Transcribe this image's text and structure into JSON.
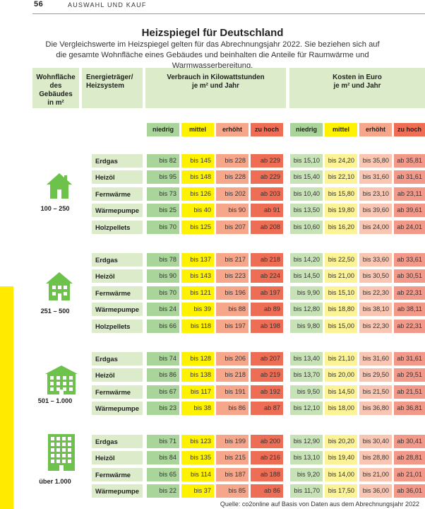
{
  "header": {
    "page_number": "56",
    "section": "AUSWAHL UND KAUF"
  },
  "title": "Heizspiegel für Deutschland",
  "subtitle": "Die Vergleichswerte im Heizspiegel gelten für das Abrechnungsjahr 2022. Sie beziehen sich auf die gesamte Wohnfläche eines Gebäudes und beinhalten die Anteile für Raumwärme und Warmwasserbereitung.",
  "column_headers": {
    "area": "Wohnfläche\ndes Gebäudes\nin m²",
    "energy": "Energieträger/\nHeizsystem",
    "consumption": "Verbrauch in Kilowattstunden\nje m² und Jahr",
    "cost": "Kosten in Euro\nje m² und Jahr"
  },
  "levels": [
    "niedrig",
    "mittel",
    "erhöht",
    "zu hoch"
  ],
  "colors": {
    "niedrig": "#a9d49a",
    "mittel": "#fff200",
    "erhoeht": "#f6a78b",
    "zu_hoch": "#ee6d55",
    "header_bg": "#dcebc9",
    "side_bar": "#ffea00"
  },
  "groups": [
    {
      "label": "100 – 250",
      "icon": "house-small-icon",
      "rows": [
        {
          "energy": "Erdgas",
          "consumption": [
            "bis 82",
            "bis 145",
            "bis 228",
            "ab 229"
          ],
          "cost": [
            "bis 15,10",
            "bis 24,20",
            "bis 35,80",
            "ab 35,81"
          ]
        },
        {
          "energy": "Heizöl",
          "consumption": [
            "bis 95",
            "bis 148",
            "bis 228",
            "ab 229"
          ],
          "cost": [
            "bis 15,40",
            "bis 22,10",
            "bis 31,60",
            "ab 31,61"
          ]
        },
        {
          "energy": "Fernwärme",
          "consumption": [
            "bis 73",
            "bis 126",
            "bis 202",
            "ab 203"
          ],
          "cost": [
            "bis 10,40",
            "bis 15,80",
            "bis 23,10",
            "ab 23,11"
          ]
        },
        {
          "energy": "Wärmepumpe",
          "consumption": [
            "bis 25",
            "bis 40",
            "bis 90",
            "ab 91"
          ],
          "cost": [
            "bis 13,50",
            "bis 19,80",
            "bis 39,60",
            "ab 39,61"
          ]
        },
        {
          "energy": "Holzpellets",
          "consumption": [
            "bis 70",
            "bis 125",
            "bis 207",
            "ab 208"
          ],
          "cost": [
            "bis 10,60",
            "bis 16,20",
            "bis 24,00",
            "ab 24,01"
          ]
        }
      ]
    },
    {
      "label": "251 – 500",
      "icon": "house-medium-icon",
      "rows": [
        {
          "energy": "Erdgas",
          "consumption": [
            "bis 78",
            "bis 137",
            "bis 217",
            "ab 218"
          ],
          "cost": [
            "bis 14,20",
            "bis 22,50",
            "bis 33,60",
            "ab 33,61"
          ]
        },
        {
          "energy": "Heizöl",
          "consumption": [
            "bis 90",
            "bis 143",
            "bis 223",
            "ab 224"
          ],
          "cost": [
            "bis 14,50",
            "bis 21,00",
            "bis 30,50",
            "ab 30,51"
          ]
        },
        {
          "energy": "Fernwärme",
          "consumption": [
            "bis 70",
            "bis 121",
            "bis 196",
            "ab 197"
          ],
          "cost": [
            "bis 9,90",
            "bis 15,10",
            "bis 22,30",
            "ab 22,31"
          ]
        },
        {
          "energy": "Wärmepumpe",
          "consumption": [
            "bis 24",
            "bis 39",
            "bis 88",
            "ab 89"
          ],
          "cost": [
            "bis 12,80",
            "bis 18,80",
            "bis 38,10",
            "ab 38,11"
          ]
        },
        {
          "energy": "Holzpellets",
          "consumption": [
            "bis 66",
            "bis 118",
            "bis 197",
            "ab 198"
          ],
          "cost": [
            "bis 9,80",
            "bis 15,00",
            "bis 22,30",
            "ab 22,31"
          ]
        }
      ]
    },
    {
      "label": "501 – 1.000",
      "icon": "apartment-building-icon",
      "rows": [
        {
          "energy": "Erdgas",
          "consumption": [
            "bis 74",
            "bis 128",
            "bis 206",
            "ab 207"
          ],
          "cost": [
            "bis 13,40",
            "bis 21,10",
            "bis 31,60",
            "ab 31,61"
          ]
        },
        {
          "energy": "Heizöl",
          "consumption": [
            "bis 86",
            "bis 138",
            "bis 218",
            "ab 219"
          ],
          "cost": [
            "bis 13,70",
            "bis 20,00",
            "bis 29,50",
            "ab 29,51"
          ]
        },
        {
          "energy": "Fernwärme",
          "consumption": [
            "bis 67",
            "bis 117",
            "bis 191",
            "ab 192"
          ],
          "cost": [
            "bis 9,50",
            "bis 14,50",
            "bis 21,50",
            "ab 21,51"
          ]
        },
        {
          "energy": "Wärmepumpe",
          "consumption": [
            "bis 23",
            "bis 38",
            "bis 86",
            "ab 87"
          ],
          "cost": [
            "bis 12,10",
            "bis 18,00",
            "bis 36,80",
            "ab 36,81"
          ]
        }
      ]
    },
    {
      "label": "über 1.000",
      "icon": "tall-building-icon",
      "rows": [
        {
          "energy": "Erdgas",
          "consumption": [
            "bis 71",
            "bis 123",
            "bis 199",
            "ab 200"
          ],
          "cost": [
            "bis 12,90",
            "bis 20,20",
            "bis 30,40",
            "ab 30,41"
          ]
        },
        {
          "energy": "Heizöl",
          "consumption": [
            "bis 84",
            "bis 135",
            "bis 215",
            "ab 216"
          ],
          "cost": [
            "bis 13,10",
            "bis 19,40",
            "bis 28,80",
            "ab 28,81"
          ]
        },
        {
          "energy": "Fernwärme",
          "consumption": [
            "bis 65",
            "bis 114",
            "bis 187",
            "ab 188"
          ],
          "cost": [
            "bis 9,20",
            "bis 14,00",
            "bis 21,00",
            "ab 21,01"
          ]
        },
        {
          "energy": "Wärmepumpe",
          "consumption": [
            "bis 22",
            "bis 37",
            "bis 85",
            "ab 86"
          ],
          "cost": [
            "bis 11,70",
            "bis 17,50",
            "bis 36,00",
            "ab 36,01"
          ]
        }
      ]
    }
  ],
  "source": "Quelle: co2online auf Basis von Daten aus dem Abrechnungsjahr 2022"
}
